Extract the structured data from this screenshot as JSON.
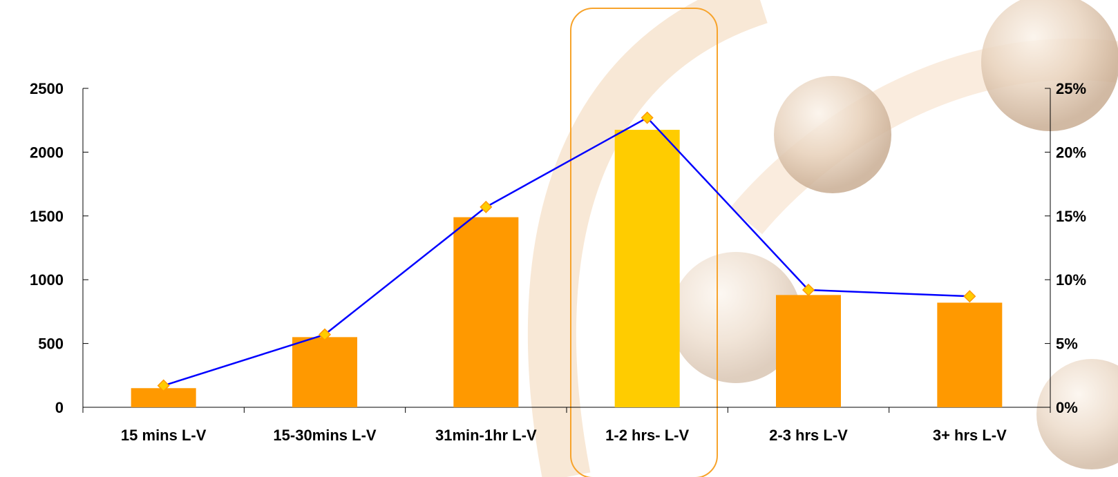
{
  "chart_data": {
    "type": "bar",
    "categories": [
      "15 mins L-V",
      "15-30mins L-V",
      "31min-1hr L-V",
      "1-2 hrs- L-V",
      "2-3 hrs L-V",
      "3+ hrs L-V"
    ],
    "series": [
      {
        "type": "bar",
        "axis": "left",
        "values": [
          150,
          550,
          1490,
          2175,
          880,
          820
        ]
      },
      {
        "type": "line",
        "axis": "right",
        "values": [
          0.017,
          0.057,
          0.157,
          0.227,
          0.092,
          0.087
        ]
      }
    ],
    "highlighted_category": "1-2 hrs- L-V",
    "left_axis": {
      "ylim": [
        0,
        2500
      ],
      "ticks": [
        0,
        500,
        1000,
        1500,
        2000,
        2500
      ],
      "labels": [
        "0",
        "500",
        "1000",
        "1500",
        "2000",
        "2500"
      ]
    },
    "right_axis": {
      "ylim": [
        0,
        0.25
      ],
      "ticks": [
        0,
        0.05,
        0.1,
        0.15,
        0.2,
        0.25
      ],
      "labels": [
        "0%",
        "5%",
        "10%",
        "15%",
        "20%",
        "25%"
      ]
    },
    "title": "",
    "xlabel": "",
    "ylabel": "",
    "grid": false,
    "legend": "none"
  },
  "colors": {
    "bar": "#FF9900",
    "bar_highlight": "#FFCC00",
    "line": "#0000FF",
    "marker": "#FFCC00",
    "marker_stroke": "#FF9900",
    "highlight_box": "#F7A32B",
    "axis": "#000000",
    "decor": "#E8A040"
  }
}
